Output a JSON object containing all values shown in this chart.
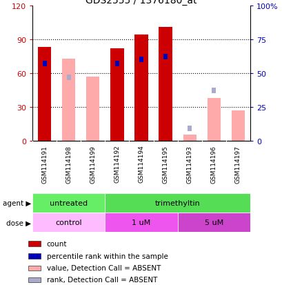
{
  "title": "GDS2555 / 1376180_at",
  "samples": [
    "GSM114191",
    "GSM114198",
    "GSM114199",
    "GSM114192",
    "GSM114194",
    "GSM114195",
    "GSM114193",
    "GSM114196",
    "GSM114197"
  ],
  "red_bars": [
    83,
    0,
    0,
    82,
    94,
    101,
    0,
    0,
    0
  ],
  "pink_bars": [
    0,
    73,
    57,
    0,
    0,
    0,
    5,
    38,
    27
  ],
  "blue_squares": [
    57,
    0,
    0,
    57,
    60,
    62,
    0,
    0,
    0
  ],
  "light_blue_squares": [
    0,
    47,
    0,
    0,
    0,
    0,
    9,
    37,
    0
  ],
  "ylim_left": [
    0,
    120
  ],
  "ylim_right": [
    0,
    100
  ],
  "yticks_left": [
    0,
    30,
    60,
    90,
    120
  ],
  "yticks_right": [
    0,
    25,
    50,
    75,
    100
  ],
  "yticklabels_left": [
    "0",
    "30",
    "60",
    "90",
    "120"
  ],
  "yticklabels_right": [
    "0",
    "25",
    "50",
    "75",
    "100%"
  ],
  "agent_groups": [
    {
      "label": "untreated",
      "start": 0,
      "end": 3,
      "color": "#66EE66"
    },
    {
      "label": "trimethyltin",
      "start": 3,
      "end": 9,
      "color": "#55DD55"
    }
  ],
  "dose_groups": [
    {
      "label": "control",
      "start": 0,
      "end": 3,
      "color": "#FFBBFF"
    },
    {
      "label": "1 uM",
      "start": 3,
      "end": 6,
      "color": "#EE55EE"
    },
    {
      "label": "5 uM",
      "start": 6,
      "end": 9,
      "color": "#CC44CC"
    }
  ],
  "color_red": "#CC0000",
  "color_pink": "#FFAAAA",
  "color_blue": "#0000BB",
  "color_light_blue": "#AAAACC",
  "bar_width": 0.55,
  "bg_color": "#FFFFFF",
  "plot_bg": "#FFFFFF",
  "left_tick_color": "#CC0000",
  "right_tick_color": "#0000BB",
  "sample_bg": "#CCCCCC",
  "legend_items": [
    {
      "color": "#CC0000",
      "label": "count"
    },
    {
      "color": "#0000BB",
      "label": "percentile rank within the sample"
    },
    {
      "color": "#FFAAAA",
      "label": "value, Detection Call = ABSENT"
    },
    {
      "color": "#AAAACC",
      "label": "rank, Detection Call = ABSENT"
    }
  ]
}
